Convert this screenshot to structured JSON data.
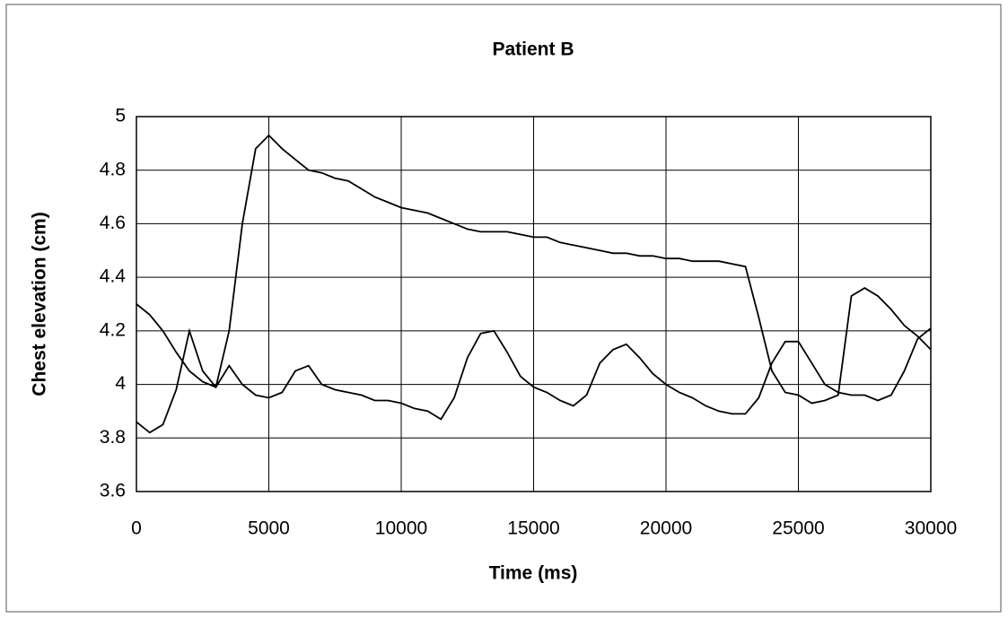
{
  "chart_data": {
    "type": "line",
    "title": "Patient B",
    "x_label": "Time (ms)",
    "y_label": "Chest elevation (cm)",
    "x": [
      0,
      500,
      1000,
      1500,
      2000,
      2500,
      3000,
      3500,
      4000,
      4500,
      5000,
      5500,
      6000,
      6500,
      7000,
      7500,
      8000,
      8500,
      9000,
      9500,
      10000,
      10500,
      11000,
      11500,
      12000,
      12500,
      13000,
      13500,
      14000,
      14500,
      15000,
      15500,
      16000,
      16500,
      17000,
      17500,
      18000,
      18500,
      19000,
      19500,
      20000,
      20500,
      21000,
      21500,
      22000,
      22500,
      23000,
      23500,
      24000,
      24500,
      25000,
      25500,
      26000,
      26500,
      27000,
      27500,
      28000,
      28500,
      29000,
      29500,
      30000
    ],
    "series": [
      {
        "color": "#000000",
        "values": [
          3.86,
          3.82,
          3.85,
          3.98,
          4.2,
          4.05,
          3.99,
          4.07,
          4.0,
          3.96,
          3.95,
          3.97,
          4.05,
          4.07,
          4.0,
          3.98,
          3.97,
          3.96,
          3.94,
          3.94,
          3.93,
          3.91,
          3.9,
          3.87,
          3.95,
          4.1,
          4.19,
          4.2,
          4.12,
          4.03,
          3.99,
          3.97,
          3.94,
          3.92,
          3.96,
          4.08,
          4.13,
          4.15,
          4.1,
          4.04,
          4.0,
          3.97,
          3.95,
          3.92,
          3.9,
          3.89,
          3.89,
          3.95,
          4.08,
          4.16,
          4.16,
          4.08,
          4.0,
          3.97,
          3.96,
          3.96,
          3.94,
          3.96,
          4.05,
          4.17,
          4.21
        ]
      },
      {
        "color": "#000000",
        "values": [
          4.3,
          4.26,
          4.2,
          4.12,
          4.05,
          4.01,
          3.99,
          4.2,
          4.6,
          4.88,
          4.93,
          4.88,
          4.84,
          4.8,
          4.79,
          4.77,
          4.76,
          4.73,
          4.7,
          4.68,
          4.66,
          4.65,
          4.64,
          4.62,
          4.6,
          4.58,
          4.57,
          4.57,
          4.57,
          4.56,
          4.55,
          4.55,
          4.53,
          4.52,
          4.51,
          4.5,
          4.49,
          4.49,
          4.48,
          4.48,
          4.47,
          4.47,
          4.46,
          4.46,
          4.46,
          4.45,
          4.44,
          4.25,
          4.05,
          3.97,
          3.96,
          3.93,
          3.94,
          3.96,
          4.33,
          4.36,
          4.33,
          4.28,
          4.22,
          4.18,
          4.13
        ]
      }
    ],
    "xlim": [
      0,
      30000
    ],
    "xticks": [
      0,
      5000,
      10000,
      15000,
      20000,
      25000,
      30000
    ],
    "ylim": [
      3.6,
      5
    ],
    "yticks": [
      3.6,
      3.8,
      4,
      4.2,
      4.4,
      4.6,
      4.8,
      5
    ],
    "grid": true
  }
}
